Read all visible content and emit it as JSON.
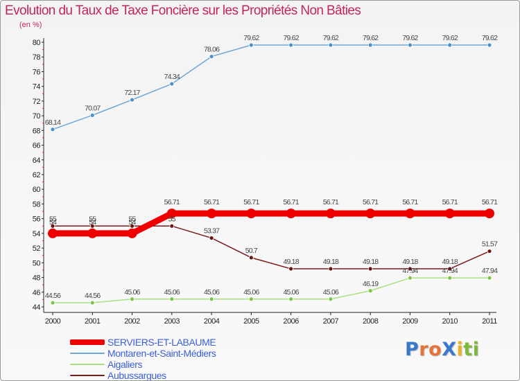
{
  "chart_data": {
    "type": "line",
    "title": "Evolution du Taux de Taxe Foncière sur les Propriétés Non Bâties",
    "ylabel": "(en %)",
    "xlabel": "",
    "categories": [
      "2000",
      "2001",
      "2002",
      "2003",
      "2004",
      "2005",
      "2006",
      "2007",
      "2008",
      "2009",
      "2010",
      "2011"
    ],
    "ylim": [
      44,
      80
    ],
    "ytick_step": 2,
    "grid": false,
    "legend_position": "bottom-left",
    "series": [
      {
        "name": "Montaren-et-Saint-Médiers",
        "color": "#6ea6d6",
        "marker_color": "#4a90c8",
        "values": [
          68.14,
          70.07,
          72.17,
          74.34,
          78.06,
          79.62,
          79.62,
          79.62,
          79.62,
          79.62,
          79.62,
          79.62
        ],
        "labels": [
          "68.14",
          "70.07",
          "72.17",
          "74.34",
          "78.06",
          "79.62",
          "79.62",
          "79.62",
          "79.62",
          "79.62",
          "79.62",
          "79.62"
        ]
      },
      {
        "name": "Aubussargues",
        "color": "#7a1a1a",
        "marker_color": "#6a1414",
        "values": [
          55,
          55,
          55,
          55,
          53.37,
          50.7,
          49.18,
          49.18,
          49.18,
          49.18,
          49.18,
          51.57
        ],
        "labels": [
          "55",
          "55",
          "55",
          "55",
          "53.37",
          "50.7",
          "49.18",
          "49.18",
          "49.18",
          "49.18",
          "49.18",
          "51.57"
        ]
      },
      {
        "name": "Aigaliers",
        "color": "#a8e080",
        "marker_color": "#7cc44a",
        "values": [
          44.56,
          44.56,
          45.06,
          45.06,
          45.06,
          45.06,
          45.06,
          45.06,
          46.19,
          47.94,
          47.94,
          47.94
        ],
        "labels": [
          "44.56",
          "44.56",
          "45.06",
          "45.06",
          "45.06",
          "45.06",
          "45.06",
          "45.06",
          "46.19",
          "47.94",
          "47.94",
          "47.94"
        ]
      },
      {
        "name": "SERVIERS-ET-LABAUME",
        "color": "#ee0000",
        "marker_color": "#ee0000",
        "values": [
          54,
          54,
          54,
          56.71,
          56.71,
          56.71,
          56.71,
          56.71,
          56.71,
          56.71,
          56.71,
          56.71
        ],
        "labels": [
          "54",
          "54",
          "54",
          "56.71",
          "56.71",
          "56.71",
          "56.71",
          "56.71",
          "56.71",
          "56.71",
          "56.71",
          "56.71"
        ]
      }
    ]
  },
  "legend": {
    "items": [
      {
        "label": "SERVIERS-ET-LABAUME",
        "color": "#ee0000",
        "thickness": 8
      },
      {
        "label": "Montaren-et-Saint-Médiers",
        "color": "#6ea6d6",
        "thickness": 2
      },
      {
        "label": "Aigaliers",
        "color": "#a8e080",
        "thickness": 2
      },
      {
        "label": "Aubussargues",
        "color": "#7a1a1a",
        "thickness": 2
      }
    ]
  },
  "logo": {
    "letters": [
      {
        "char": "P",
        "color": "#3a78c9"
      },
      {
        "char": "r",
        "color": "#e8733a"
      },
      {
        "char": "o",
        "color": "#e8733a"
      },
      {
        "char": "X",
        "color": "#3a78c9"
      },
      {
        "char": "i",
        "color": "#f0b020"
      },
      {
        "char": "t",
        "color": "#7cb83a"
      },
      {
        "char": "i",
        "color": "#7cb83a"
      }
    ]
  }
}
